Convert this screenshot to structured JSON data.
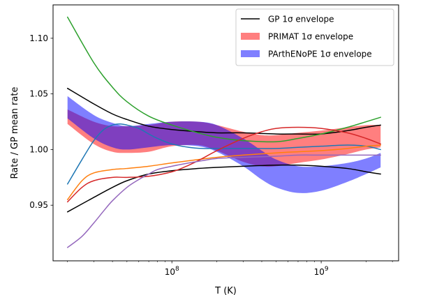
{
  "chart_data": {
    "type": "line",
    "title": "",
    "xlabel": "T (K)",
    "ylabel": "Rate / GP mean rate",
    "x_scale": "log",
    "xlim": [
      16000000.0,
      3300000000.0
    ],
    "ylim": [
      0.9,
      1.13
    ],
    "grid": false,
    "legend_position": "top-right",
    "x_ticks": [
      {
        "value": 100000000.0,
        "label_base": "10",
        "label_exp": "8"
      },
      {
        "value": 1000000000.0,
        "label_base": "10",
        "label_exp": "9"
      }
    ],
    "y_ticks": [
      {
        "value": 0.95,
        "label": "0.95"
      },
      {
        "value": 1.0,
        "label": "1.00"
      },
      {
        "value": 1.05,
        "label": "1.05"
      },
      {
        "value": 1.1,
        "label": "1.10"
      }
    ],
    "legend": [
      {
        "label": "GP 1σ envelope",
        "kind": "line",
        "color": "#000000"
      },
      {
        "label": "PRIMAT 1σ envelope",
        "kind": "patch",
        "color": "#ff7f7f"
      },
      {
        "label": "PArthENoPE 1σ envelope",
        "kind": "patch",
        "color": "#7f7fff"
      }
    ],
    "bands": [
      {
        "name": "PRIMAT 1σ envelope",
        "color": "#ff0000",
        "opacity": 0.5,
        "x": [
          20000000.0,
          30000000.0,
          40000000.0,
          50000000.0,
          70000000.0,
          100000000.0,
          150000000.0,
          200000000.0,
          300000000.0,
          400000000.0,
          500000000.0,
          700000000.0,
          1000000000.0,
          1500000000.0,
          2000000000.0,
          2500000000.0
        ],
        "upper": [
          1.036,
          1.025,
          1.021,
          1.021,
          1.022,
          1.025,
          1.025,
          1.022,
          1.016,
          1.013,
          1.013,
          1.015,
          1.017,
          1.02,
          1.022,
          1.022
        ],
        "lower": [
          1.023,
          1.005,
          0.998,
          0.997,
          0.998,
          1.003,
          1.004,
          0.999,
          0.989,
          0.985,
          0.985,
          0.988,
          0.991,
          0.996,
          1.0,
          1.002
        ]
      },
      {
        "name": "PArthENoPE 1σ envelope",
        "color": "#0000ff",
        "opacity": 0.5,
        "x": [
          20000000.0,
          30000000.0,
          40000000.0,
          50000000.0,
          70000000.0,
          100000000.0,
          150000000.0,
          200000000.0,
          300000000.0,
          400000000.0,
          500000000.0,
          700000000.0,
          1000000000.0,
          1500000000.0,
          2000000000.0,
          2500000000.0
        ],
        "upper": [
          1.048,
          1.031,
          1.024,
          1.021,
          1.023,
          1.025,
          1.025,
          1.022,
          1.01,
          0.999,
          0.991,
          0.985,
          0.985,
          0.988,
          0.992,
          0.997
        ],
        "lower": [
          1.028,
          1.01,
          1.002,
          1.0,
          1.002,
          1.004,
          1.003,
          0.998,
          0.985,
          0.973,
          0.966,
          0.961,
          0.963,
          0.971,
          0.978,
          0.984
        ]
      }
    ],
    "series": [
      {
        "name": "GP 1σ envelope",
        "color": "#000000",
        "x": [
          20000000.0,
          30000000.0,
          40000000.0,
          50000000.0,
          70000000.0,
          100000000.0,
          150000000.0,
          200000000.0,
          300000000.0,
          500000000.0,
          700000000.0,
          1000000000.0,
          1500000000.0,
          2000000000.0,
          2500000000.0
        ],
        "y": [
          1.055,
          1.041,
          1.032,
          1.027,
          1.021,
          1.018,
          1.016,
          1.015,
          1.015,
          1.014,
          1.014,
          1.014,
          1.017,
          1.02,
          1.022
        ]
      },
      {
        "color": "#000000",
        "x": [
          20000000.0,
          30000000.0,
          40000000.0,
          50000000.0,
          70000000.0,
          100000000.0,
          150000000.0,
          200000000.0,
          300000000.0,
          500000000.0,
          700000000.0,
          1000000000.0,
          1500000000.0,
          2000000000.0,
          2500000000.0
        ],
        "y": [
          0.944,
          0.957,
          0.966,
          0.972,
          0.978,
          0.981,
          0.983,
          0.984,
          0.985,
          0.986,
          0.986,
          0.985,
          0.983,
          0.98,
          0.978
        ]
      },
      {
        "color": "#1f77b4",
        "x": [
          20000000.0,
          25000000.0,
          30000000.0,
          35000000.0,
          40000000.0,
          45000000.0,
          50000000.0,
          60000000.0,
          70000000.0,
          80000000.0,
          100000000.0,
          130000000.0,
          160000000.0,
          200000000.0,
          300000000.0,
          500000000.0,
          700000000.0,
          1000000000.0,
          1500000000.0,
          2000000000.0,
          2500000000.0
        ],
        "y": [
          0.969,
          0.991,
          1.008,
          1.018,
          1.022,
          1.023,
          1.022,
          1.019,
          1.014,
          1.01,
          1.005,
          1.002,
          1.001,
          1.001,
          1.001,
          1.001,
          1.002,
          1.003,
          1.004,
          1.003,
          1.0
        ]
      },
      {
        "color": "#ff7f0e",
        "x": [
          20000000.0,
          25000000.0,
          30000000.0,
          40000000.0,
          50000000.0,
          70000000.0,
          100000000.0,
          150000000.0,
          200000000.0,
          300000000.0,
          500000000.0,
          700000000.0,
          1000000000.0,
          1500000000.0,
          2000000000.0,
          2500000000.0
        ],
        "y": [
          0.955,
          0.972,
          0.979,
          0.982,
          0.983,
          0.985,
          0.988,
          0.991,
          0.993,
          0.995,
          0.997,
          0.998,
          0.999,
          1.001,
          1.003,
          1.004
        ]
      },
      {
        "color": "#2ca02c",
        "x": [
          20000000.0,
          30000000.0,
          40000000.0,
          50000000.0,
          70000000.0,
          100000000.0,
          150000000.0,
          200000000.0,
          300000000.0,
          500000000.0,
          700000000.0,
          1000000000.0,
          1500000000.0,
          2000000000.0,
          2500000000.0
        ],
        "y": [
          1.119,
          1.078,
          1.056,
          1.043,
          1.03,
          1.022,
          1.015,
          1.011,
          1.008,
          1.007,
          1.01,
          1.014,
          1.02,
          1.025,
          1.029
        ]
      },
      {
        "color": "#d62728",
        "x": [
          20000000.0,
          25000000.0,
          30000000.0,
          40000000.0,
          50000000.0,
          70000000.0,
          100000000.0,
          130000000.0,
          160000000.0,
          200000000.0,
          300000000.0,
          400000000.0,
          500000000.0,
          700000000.0,
          1000000000.0,
          1500000000.0,
          2000000000.0,
          2500000000.0
        ],
        "y": [
          0.953,
          0.966,
          0.972,
          0.975,
          0.975,
          0.976,
          0.98,
          0.986,
          0.992,
          0.999,
          1.01,
          1.016,
          1.019,
          1.02,
          1.019,
          1.015,
          1.01,
          1.005
        ]
      },
      {
        "color": "#9467bd",
        "x": [
          20000000.0,
          25000000.0,
          30000000.0,
          35000000.0,
          40000000.0,
          50000000.0,
          60000000.0,
          70000000.0,
          80000000.0,
          100000000.0,
          130000000.0,
          160000000.0,
          200000000.0,
          300000000.0,
          500000000.0,
          700000000.0,
          1000000000.0,
          1500000000.0,
          2000000000.0,
          2500000000.0
        ],
        "y": [
          0.912,
          0.922,
          0.934,
          0.945,
          0.954,
          0.966,
          0.973,
          0.978,
          0.982,
          0.985,
          0.988,
          0.99,
          0.992,
          0.993,
          0.994,
          0.995,
          0.995,
          0.995,
          0.995,
          0.995
        ]
      }
    ]
  }
}
